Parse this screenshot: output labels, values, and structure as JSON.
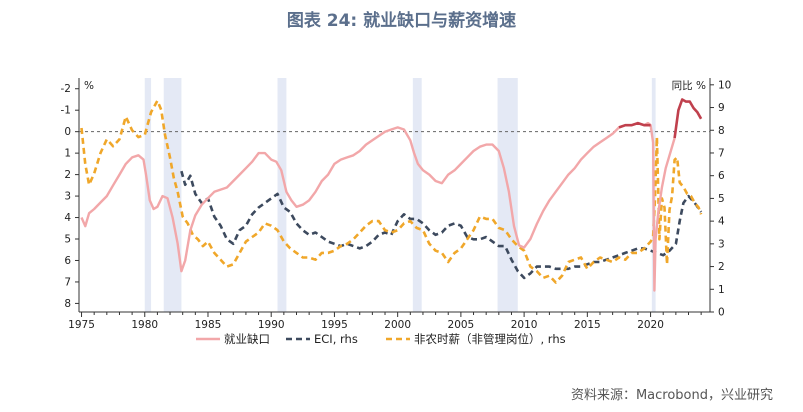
{
  "title": "图表 24: 就业缺口与薪资增速",
  "source": "资料来源：Macrobond，兴业研究",
  "colors": {
    "gap": "#f2a7a9",
    "gap_recent": "#c0404d",
    "eci": "#3d4a5e",
    "nfp": "#f0a72a",
    "recession": "#e4e9f5",
    "zero_line": "#666666"
  },
  "chart_data": {
    "type": "line",
    "title": "图表 24: 就业缺口与薪资增速",
    "left_axis": {
      "unit": "%",
      "range": [
        -2.5,
        8.4
      ],
      "inverted": true,
      "ticks": [
        "-2",
        "-1",
        "0",
        "1",
        "2",
        "3",
        "4",
        "5",
        "6",
        "7",
        "8"
      ]
    },
    "right_axis": {
      "unit": "同比 %",
      "range": [
        0,
        10.3
      ],
      "ticks": [
        "0",
        "1",
        "2",
        "3",
        "4",
        "5",
        "6",
        "7",
        "8",
        "9",
        "10"
      ]
    },
    "x_axis": {
      "range": [
        1974.8,
        2024.7
      ],
      "ticks": [
        "1975",
        "1980",
        "1985",
        "1990",
        "1995",
        "2000",
        "2005",
        "2010",
        "2015",
        "2020"
      ]
    },
    "reference_line": {
      "axis": "left",
      "value": 0,
      "style": "dashed"
    },
    "recessions": [
      [
        1980.0,
        1980.5
      ],
      [
        1981.5,
        1982.9
      ],
      [
        1990.5,
        1991.2
      ],
      [
        2001.2,
        2001.9
      ],
      [
        2007.9,
        2009.5
      ],
      [
        2020.1,
        2020.4
      ]
    ],
    "legend": [
      "就业缺口",
      "ECI, rhs",
      "非农时薪（非管理岗位）, rhs"
    ],
    "series": [
      {
        "name": "就业缺口",
        "axis": "left",
        "style": "solid",
        "x": [
          1975.0,
          1975.3,
          1975.6,
          1976.0,
          1976.5,
          1977.0,
          1977.5,
          1978.0,
          1978.5,
          1979.0,
          1979.5,
          1979.9,
          1980.1,
          1980.4,
          1980.7,
          1981.0,
          1981.4,
          1981.8,
          1982.2,
          1982.6,
          1982.9,
          1983.2,
          1983.6,
          1984.0,
          1984.5,
          1985.0,
          1985.5,
          1986.0,
          1986.5,
          1987.0,
          1987.5,
          1988.0,
          1988.5,
          1989.0,
          1989.5,
          1990.0,
          1990.4,
          1990.8,
          1991.2,
          1991.6,
          1992.0,
          1992.5,
          1993.0,
          1993.5,
          1994.0,
          1994.5,
          1995.0,
          1995.5,
          1996.0,
          1996.5,
          1997.0,
          1997.5,
          1998.0,
          1998.5,
          1999.0,
          1999.5,
          2000.0,
          2000.5,
          2001.0,
          2001.3,
          2001.6,
          2002.0,
          2002.5,
          2003.0,
          2003.5,
          2004.0,
          2004.5,
          2005.0,
          2005.5,
          2006.0,
          2006.5,
          2007.0,
          2007.5,
          2008.0,
          2008.4,
          2008.8,
          2009.2,
          2009.6,
          2010.0,
          2010.5,
          2011.0,
          2011.5,
          2012.0,
          2012.5,
          2013.0,
          2013.5,
          2014.0,
          2014.5,
          2015.0,
          2015.5,
          2016.0,
          2016.5,
          2017.0,
          2017.5,
          2018.0
        ],
        "values": [
          4.0,
          4.4,
          3.8,
          3.6,
          3.3,
          3.0,
          2.5,
          2.0,
          1.5,
          1.2,
          1.1,
          1.3,
          2.0,
          3.2,
          3.6,
          3.5,
          3.0,
          3.1,
          4.0,
          5.2,
          6.5,
          6.0,
          4.6,
          3.9,
          3.4,
          3.1,
          2.8,
          2.7,
          2.6,
          2.3,
          2.0,
          1.7,
          1.4,
          1.0,
          1.0,
          1.3,
          1.4,
          1.8,
          2.8,
          3.2,
          3.5,
          3.4,
          3.2,
          2.8,
          2.3,
          2.0,
          1.5,
          1.3,
          1.2,
          1.1,
          0.9,
          0.6,
          0.4,
          0.2,
          0.0,
          -0.1,
          -0.2,
          -0.1,
          0.4,
          1.0,
          1.5,
          1.8,
          2.0,
          2.3,
          2.4,
          2.0,
          1.8,
          1.5,
          1.2,
          0.9,
          0.7,
          0.6,
          0.6,
          0.9,
          1.7,
          2.8,
          4.4,
          5.3,
          5.4,
          5.0,
          4.3,
          3.7,
          3.2,
          2.8,
          2.4,
          2.0,
          1.7,
          1.3,
          1.0,
          0.7,
          0.5,
          0.3,
          0.1,
          -0.2,
          -0.3
        ]
      },
      {
        "name": "就业缺口",
        "axis": "left",
        "style": "solid",
        "x": [
          2018.0,
          2018.5,
          2019.0,
          2019.5,
          2019.8,
          2020.0,
          2020.2,
          2020.3,
          2020.4,
          2020.6,
          2020.9,
          2021.2,
          2021.6,
          2021.9
        ],
        "values": [
          -0.3,
          -0.3,
          -0.4,
          -0.3,
          -0.4,
          -0.3,
          0.5,
          7.4,
          5.0,
          3.8,
          2.6,
          1.7,
          0.9,
          0.3
        ]
      },
      {
        "name": "就业缺口",
        "axis": "left",
        "style": "solid-recent",
        "x": [
          2017.5,
          2018.0,
          2018.5,
          2019.0,
          2019.5,
          2020.0
        ],
        "values": [
          -0.2,
          -0.3,
          -0.3,
          -0.4,
          -0.3,
          -0.3
        ]
      },
      {
        "name": "就业缺口",
        "axis": "left",
        "style": "solid-recent",
        "x": [
          2021.9,
          2022.2,
          2022.5,
          2022.8,
          2023.1,
          2023.4,
          2023.7,
          2024.0
        ],
        "values": [
          0.3,
          -1.0,
          -1.5,
          -1.4,
          -1.4,
          -1.1,
          -0.9,
          -0.6
        ]
      },
      {
        "name": "ECI, rhs",
        "axis": "right",
        "style": "dashed",
        "x": [
          1982.9,
          1983.2,
          1983.6,
          1984.0,
          1984.5,
          1985.0,
          1985.5,
          1986.0,
          1986.5,
          1987.0,
          1987.5,
          1988.0,
          1988.5,
          1989.0,
          1989.5,
          1990.0,
          1990.5,
          1991.0,
          1991.5,
          1992.0,
          1992.5,
          1993.0,
          1993.5,
          1994.0,
          1994.5,
          1995.0,
          1995.5,
          1996.0,
          1996.5,
          1997.0,
          1997.5,
          1998.0,
          1998.5,
          1999.0,
          1999.5,
          2000.0,
          2000.5,
          2001.0,
          2001.5,
          2002.0,
          2002.5,
          2003.0,
          2003.5,
          2004.0,
          2004.5,
          2005.0,
          2005.5,
          2006.0,
          2006.5,
          2007.0,
          2007.5,
          2008.0,
          2008.5,
          2009.0,
          2009.5,
          2010.0,
          2010.5,
          2011.0,
          2011.5,
          2012.0,
          2012.5,
          2013.0,
          2013.5,
          2014.0,
          2014.5,
          2015.0,
          2015.5,
          2016.0,
          2016.5,
          2017.0,
          2017.5,
          2018.0,
          2018.5,
          2019.0,
          2019.5,
          2020.0,
          2020.5,
          2021.0,
          2021.5,
          2022.0,
          2022.3,
          2022.6,
          2023.0,
          2023.5,
          2024.0
        ],
        "values": [
          6.2,
          5.6,
          6.0,
          5.2,
          4.8,
          5.0,
          4.2,
          3.8,
          3.2,
          3.0,
          3.6,
          3.8,
          4.3,
          4.6,
          4.8,
          5.0,
          5.2,
          4.6,
          4.4,
          3.9,
          3.6,
          3.4,
          3.5,
          3.3,
          3.1,
          3.0,
          2.9,
          3.0,
          2.9,
          2.8,
          2.9,
          3.1,
          3.4,
          3.5,
          3.4,
          4.0,
          4.3,
          4.1,
          4.1,
          3.9,
          3.6,
          3.4,
          3.5,
          3.8,
          3.9,
          3.8,
          3.3,
          3.2,
          3.2,
          3.3,
          3.1,
          2.9,
          2.9,
          2.3,
          1.8,
          1.5,
          1.7,
          2.0,
          2.0,
          2.0,
          1.9,
          1.9,
          1.9,
          2.0,
          2.0,
          2.1,
          2.2,
          2.2,
          2.3,
          2.4,
          2.5,
          2.6,
          2.7,
          2.8,
          2.8,
          2.7,
          2.6,
          2.5,
          2.7,
          3.0,
          4.0,
          4.8,
          5.1,
          4.8,
          4.4
        ]
      },
      {
        "name": "非农时薪（非管理岗位）, rhs",
        "axis": "right",
        "style": "dashed",
        "x": [
          1975.0,
          1975.3,
          1975.6,
          1976.0,
          1976.5,
          1977.0,
          1977.5,
          1978.0,
          1978.5,
          1979.0,
          1979.5,
          1980.0,
          1980.5,
          1981.0,
          1981.3,
          1981.6,
          1982.0,
          1982.3,
          1982.6,
          1983.0,
          1983.4,
          1983.8,
          1984.2,
          1984.6,
          1985.0,
          1985.5,
          1986.0,
          1986.5,
          1987.0,
          1987.5,
          1988.0,
          1988.5,
          1989.0,
          1989.5,
          1990.0,
          1990.5,
          1991.0,
          1991.5,
          1992.0,
          1992.5,
          1993.0,
          1993.5,
          1994.0,
          1994.5,
          1995.0,
          1995.5,
          1996.0,
          1996.5,
          1997.0,
          1997.5,
          1998.0,
          1998.5,
          1999.0,
          1999.5,
          2000.0,
          2000.5,
          2001.0,
          2001.5,
          2002.0,
          2002.5,
          2003.0,
          2003.5,
          2004.0,
          2004.5,
          2005.0,
          2005.5,
          2006.0,
          2006.5,
          2007.0,
          2007.5,
          2008.0,
          2008.5,
          2009.0,
          2009.5,
          2010.0,
          2010.5,
          2011.0,
          2011.5,
          2012.0,
          2012.5,
          2013.0,
          2013.5,
          2014.0,
          2014.5,
          2015.0,
          2015.5,
          2016.0,
          2016.5,
          2017.0,
          2017.5,
          2018.0,
          2018.5,
          2019.0,
          2019.5,
          2020.0,
          2020.2,
          2020.35,
          2020.5,
          2020.7,
          2020.9,
          2021.1,
          2021.3,
          2021.5,
          2021.7,
          2021.9,
          2022.1,
          2022.3,
          2022.6,
          2022.9,
          2023.2,
          2023.5,
          2023.8,
          2024.0
        ],
        "values": [
          8.1,
          6.5,
          5.6,
          6.1,
          7.0,
          7.6,
          7.3,
          7.6,
          8.6,
          8.0,
          7.7,
          7.8,
          8.8,
          9.3,
          8.9,
          7.8,
          6.8,
          5.9,
          5.3,
          4.2,
          3.9,
          3.4,
          3.2,
          2.9,
          3.1,
          2.6,
          2.3,
          2.0,
          2.1,
          2.6,
          3.1,
          3.3,
          3.5,
          3.9,
          3.8,
          3.6,
          3.1,
          2.8,
          2.6,
          2.4,
          2.4,
          2.3,
          2.6,
          2.6,
          2.7,
          2.9,
          3.0,
          3.2,
          3.5,
          3.8,
          4.0,
          4.0,
          3.6,
          3.5,
          3.6,
          3.9,
          4.0,
          3.7,
          3.6,
          3.0,
          2.7,
          2.6,
          2.2,
          2.6,
          2.8,
          3.2,
          3.6,
          4.2,
          4.1,
          4.1,
          3.7,
          3.6,
          3.2,
          2.9,
          2.7,
          2.0,
          1.8,
          1.5,
          1.6,
          1.3,
          1.6,
          2.2,
          2.3,
          2.4,
          1.9,
          2.2,
          2.4,
          2.3,
          2.2,
          2.4,
          2.3,
          2.6,
          2.6,
          2.8,
          3.1,
          3.3,
          5.0,
          7.7,
          3.2,
          5.0,
          4.6,
          2.1,
          4.5,
          5.1,
          6.7,
          6.8,
          5.7,
          5.5,
          5.2,
          5.1,
          4.8,
          4.6,
          4.3
        ]
      }
    ]
  }
}
